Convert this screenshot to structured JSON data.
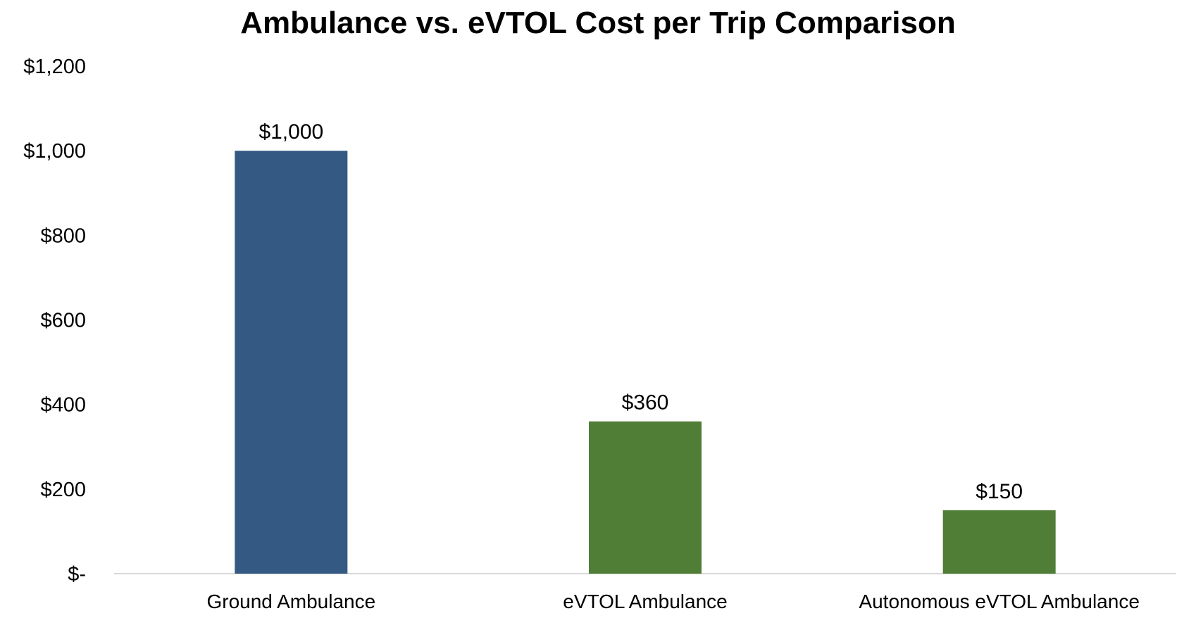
{
  "chart_data": {
    "type": "bar",
    "title": "Ambulance vs. eVTOL Cost per Trip Comparison",
    "xlabel": "",
    "ylabel": "",
    "categories": [
      "Ground Ambulance",
      "eVTOL Ambulance",
      "Autonomous eVTOL Ambulance"
    ],
    "values": [
      1000,
      360,
      150
    ],
    "data_labels": [
      "$1,000",
      "$360",
      "$150"
    ],
    "bar_colors": [
      "#345A84",
      "#507E36",
      "#507E36"
    ],
    "ylim": [
      0,
      1200
    ],
    "yticks": [
      0,
      200,
      400,
      600,
      800,
      1000,
      1200
    ],
    "ytick_labels": [
      "$-",
      "$200",
      "$400",
      "$600",
      "$800",
      "$1,000",
      "$1,200"
    ],
    "grid": false,
    "legend": "none",
    "baseline_color": "#d9d9d9"
  }
}
